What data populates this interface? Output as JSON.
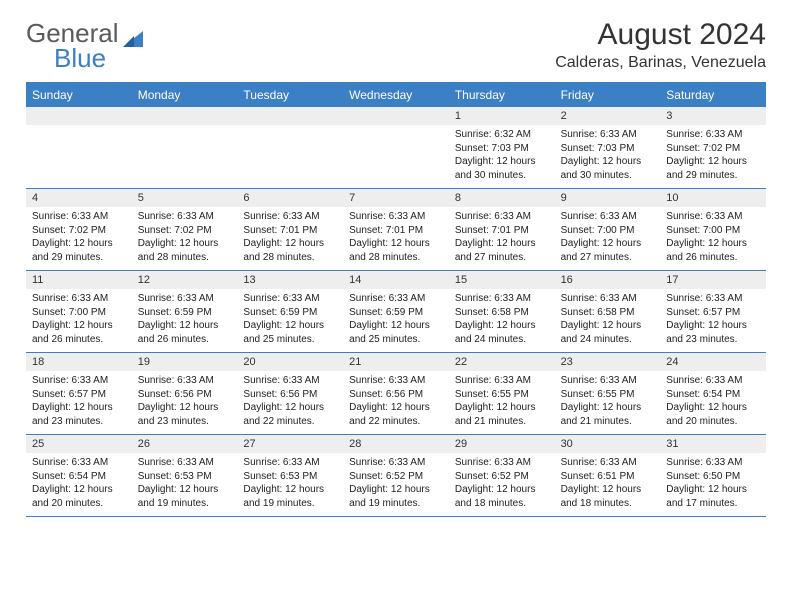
{
  "logo": {
    "text1": "General",
    "text2": "Blue"
  },
  "title": "August 2024",
  "location": "Calderas, Barinas, Venezuela",
  "colors": {
    "accent": "#3b7fc4",
    "header_text": "#ffffff",
    "daynum_bg": "#eeeeee",
    "body_text": "#222222",
    "title_text": "#333333",
    "logo_gray": "#5a5a5a"
  },
  "fonts": {
    "title_size": 30,
    "location_size": 16,
    "dayhead_size": 12,
    "daynum_size": 11,
    "body_size": 10
  },
  "dayHeaders": [
    "Sunday",
    "Monday",
    "Tuesday",
    "Wednesday",
    "Thursday",
    "Friday",
    "Saturday"
  ],
  "weeks": [
    [
      {
        "num": "",
        "sunrise": "",
        "sunset": "",
        "daylight": ""
      },
      {
        "num": "",
        "sunrise": "",
        "sunset": "",
        "daylight": ""
      },
      {
        "num": "",
        "sunrise": "",
        "sunset": "",
        "daylight": ""
      },
      {
        "num": "",
        "sunrise": "",
        "sunset": "",
        "daylight": ""
      },
      {
        "num": "1",
        "sunrise": "Sunrise: 6:32 AM",
        "sunset": "Sunset: 7:03 PM",
        "daylight": "Daylight: 12 hours and 30 minutes."
      },
      {
        "num": "2",
        "sunrise": "Sunrise: 6:33 AM",
        "sunset": "Sunset: 7:03 PM",
        "daylight": "Daylight: 12 hours and 30 minutes."
      },
      {
        "num": "3",
        "sunrise": "Sunrise: 6:33 AM",
        "sunset": "Sunset: 7:02 PM",
        "daylight": "Daylight: 12 hours and 29 minutes."
      }
    ],
    [
      {
        "num": "4",
        "sunrise": "Sunrise: 6:33 AM",
        "sunset": "Sunset: 7:02 PM",
        "daylight": "Daylight: 12 hours and 29 minutes."
      },
      {
        "num": "5",
        "sunrise": "Sunrise: 6:33 AM",
        "sunset": "Sunset: 7:02 PM",
        "daylight": "Daylight: 12 hours and 28 minutes."
      },
      {
        "num": "6",
        "sunrise": "Sunrise: 6:33 AM",
        "sunset": "Sunset: 7:01 PM",
        "daylight": "Daylight: 12 hours and 28 minutes."
      },
      {
        "num": "7",
        "sunrise": "Sunrise: 6:33 AM",
        "sunset": "Sunset: 7:01 PM",
        "daylight": "Daylight: 12 hours and 28 minutes."
      },
      {
        "num": "8",
        "sunrise": "Sunrise: 6:33 AM",
        "sunset": "Sunset: 7:01 PM",
        "daylight": "Daylight: 12 hours and 27 minutes."
      },
      {
        "num": "9",
        "sunrise": "Sunrise: 6:33 AM",
        "sunset": "Sunset: 7:00 PM",
        "daylight": "Daylight: 12 hours and 27 minutes."
      },
      {
        "num": "10",
        "sunrise": "Sunrise: 6:33 AM",
        "sunset": "Sunset: 7:00 PM",
        "daylight": "Daylight: 12 hours and 26 minutes."
      }
    ],
    [
      {
        "num": "11",
        "sunrise": "Sunrise: 6:33 AM",
        "sunset": "Sunset: 7:00 PM",
        "daylight": "Daylight: 12 hours and 26 minutes."
      },
      {
        "num": "12",
        "sunrise": "Sunrise: 6:33 AM",
        "sunset": "Sunset: 6:59 PM",
        "daylight": "Daylight: 12 hours and 26 minutes."
      },
      {
        "num": "13",
        "sunrise": "Sunrise: 6:33 AM",
        "sunset": "Sunset: 6:59 PM",
        "daylight": "Daylight: 12 hours and 25 minutes."
      },
      {
        "num": "14",
        "sunrise": "Sunrise: 6:33 AM",
        "sunset": "Sunset: 6:59 PM",
        "daylight": "Daylight: 12 hours and 25 minutes."
      },
      {
        "num": "15",
        "sunrise": "Sunrise: 6:33 AM",
        "sunset": "Sunset: 6:58 PM",
        "daylight": "Daylight: 12 hours and 24 minutes."
      },
      {
        "num": "16",
        "sunrise": "Sunrise: 6:33 AM",
        "sunset": "Sunset: 6:58 PM",
        "daylight": "Daylight: 12 hours and 24 minutes."
      },
      {
        "num": "17",
        "sunrise": "Sunrise: 6:33 AM",
        "sunset": "Sunset: 6:57 PM",
        "daylight": "Daylight: 12 hours and 23 minutes."
      }
    ],
    [
      {
        "num": "18",
        "sunrise": "Sunrise: 6:33 AM",
        "sunset": "Sunset: 6:57 PM",
        "daylight": "Daylight: 12 hours and 23 minutes."
      },
      {
        "num": "19",
        "sunrise": "Sunrise: 6:33 AM",
        "sunset": "Sunset: 6:56 PM",
        "daylight": "Daylight: 12 hours and 23 minutes."
      },
      {
        "num": "20",
        "sunrise": "Sunrise: 6:33 AM",
        "sunset": "Sunset: 6:56 PM",
        "daylight": "Daylight: 12 hours and 22 minutes."
      },
      {
        "num": "21",
        "sunrise": "Sunrise: 6:33 AM",
        "sunset": "Sunset: 6:56 PM",
        "daylight": "Daylight: 12 hours and 22 minutes."
      },
      {
        "num": "22",
        "sunrise": "Sunrise: 6:33 AM",
        "sunset": "Sunset: 6:55 PM",
        "daylight": "Daylight: 12 hours and 21 minutes."
      },
      {
        "num": "23",
        "sunrise": "Sunrise: 6:33 AM",
        "sunset": "Sunset: 6:55 PM",
        "daylight": "Daylight: 12 hours and 21 minutes."
      },
      {
        "num": "24",
        "sunrise": "Sunrise: 6:33 AM",
        "sunset": "Sunset: 6:54 PM",
        "daylight": "Daylight: 12 hours and 20 minutes."
      }
    ],
    [
      {
        "num": "25",
        "sunrise": "Sunrise: 6:33 AM",
        "sunset": "Sunset: 6:54 PM",
        "daylight": "Daylight: 12 hours and 20 minutes."
      },
      {
        "num": "26",
        "sunrise": "Sunrise: 6:33 AM",
        "sunset": "Sunset: 6:53 PM",
        "daylight": "Daylight: 12 hours and 19 minutes."
      },
      {
        "num": "27",
        "sunrise": "Sunrise: 6:33 AM",
        "sunset": "Sunset: 6:53 PM",
        "daylight": "Daylight: 12 hours and 19 minutes."
      },
      {
        "num": "28",
        "sunrise": "Sunrise: 6:33 AM",
        "sunset": "Sunset: 6:52 PM",
        "daylight": "Daylight: 12 hours and 19 minutes."
      },
      {
        "num": "29",
        "sunrise": "Sunrise: 6:33 AM",
        "sunset": "Sunset: 6:52 PM",
        "daylight": "Daylight: 12 hours and 18 minutes."
      },
      {
        "num": "30",
        "sunrise": "Sunrise: 6:33 AM",
        "sunset": "Sunset: 6:51 PM",
        "daylight": "Daylight: 12 hours and 18 minutes."
      },
      {
        "num": "31",
        "sunrise": "Sunrise: 6:33 AM",
        "sunset": "Sunset: 6:50 PM",
        "daylight": "Daylight: 12 hours and 17 minutes."
      }
    ]
  ]
}
